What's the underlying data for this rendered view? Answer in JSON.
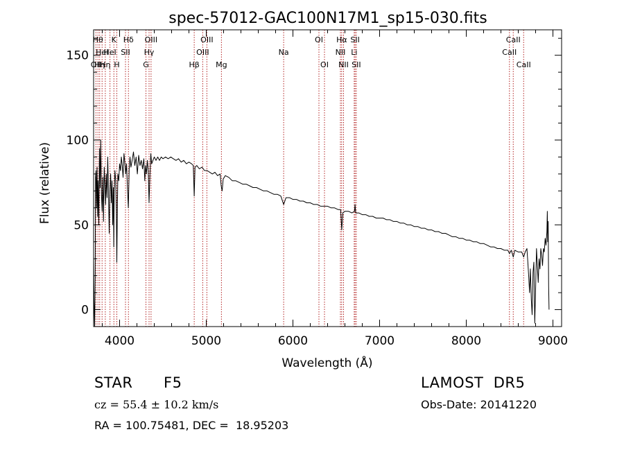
{
  "chart_data": {
    "type": "line",
    "title": "spec-57012-GAC100N17M1_sp15-030.fits",
    "xlabel": "Wavelength (Å)",
    "ylabel": "Flux (relative)",
    "xlim": [
      3700,
      9100
    ],
    "ylim": [
      -10,
      165
    ],
    "xticks": [
      4000,
      5000,
      6000,
      7000,
      8000,
      9000
    ],
    "yticks": [
      0,
      50,
      100,
      150
    ],
    "grid": false,
    "series": [
      {
        "color": "#000000",
        "points": [
          [
            3700,
            30
          ],
          [
            3705,
            5
          ],
          [
            3712,
            -10
          ],
          [
            3718,
            20
          ],
          [
            3722,
            78
          ],
          [
            3728,
            82
          ],
          [
            3734,
            60
          ],
          [
            3740,
            84
          ],
          [
            3746,
            55
          ],
          [
            3752,
            76
          ],
          [
            3760,
            50
          ],
          [
            3768,
            95
          ],
          [
            3775,
            72
          ],
          [
            3782,
            100
          ],
          [
            3790,
            68
          ],
          [
            3798,
            58
          ],
          [
            3806,
            78
          ],
          [
            3814,
            52
          ],
          [
            3822,
            84
          ],
          [
            3830,
            74
          ],
          [
            3838,
            62
          ],
          [
            3846,
            80
          ],
          [
            3855,
            66
          ],
          [
            3863,
            90
          ],
          [
            3871,
            71
          ],
          [
            3880,
            45
          ],
          [
            3888,
            70
          ],
          [
            3897,
            80
          ],
          [
            3905,
            63
          ],
          [
            3913,
            76
          ],
          [
            3920,
            50
          ],
          [
            3928,
            72
          ],
          [
            3933,
            37
          ],
          [
            3938,
            70
          ],
          [
            3946,
            82
          ],
          [
            3955,
            76
          ],
          [
            3962,
            58
          ],
          [
            3968,
            28
          ],
          [
            3974,
            60
          ],
          [
            3980,
            80
          ],
          [
            3990,
            76
          ],
          [
            4000,
            86
          ],
          [
            4010,
            82
          ],
          [
            4020,
            90
          ],
          [
            4030,
            85
          ],
          [
            4040,
            78
          ],
          [
            4050,
            92
          ],
          [
            4060,
            87
          ],
          [
            4070,
            80
          ],
          [
            4080,
            86
          ],
          [
            4090,
            72
          ],
          [
            4101,
            60
          ],
          [
            4110,
            83
          ],
          [
            4120,
            90
          ],
          [
            4130,
            84
          ],
          [
            4145,
            88
          ],
          [
            4160,
            93
          ],
          [
            4175,
            85
          ],
          [
            4190,
            90
          ],
          [
            4205,
            80
          ],
          [
            4220,
            91
          ],
          [
            4235,
            85
          ],
          [
            4250,
            88
          ],
          [
            4265,
            83
          ],
          [
            4280,
            89
          ],
          [
            4290,
            76
          ],
          [
            4300,
            85
          ],
          [
            4310,
            80
          ],
          [
            4320,
            88
          ],
          [
            4330,
            82
          ],
          [
            4340,
            63
          ],
          [
            4350,
            80
          ],
          [
            4360,
            92
          ],
          [
            4370,
            86
          ],
          [
            4385,
            88
          ],
          [
            4400,
            90
          ],
          [
            4420,
            88
          ],
          [
            4440,
            90
          ],
          [
            4460,
            88
          ],
          [
            4480,
            90
          ],
          [
            4500,
            89
          ],
          [
            4530,
            90
          ],
          [
            4560,
            89
          ],
          [
            4590,
            90
          ],
          [
            4620,
            89
          ],
          [
            4650,
            88
          ],
          [
            4680,
            89
          ],
          [
            4710,
            87
          ],
          [
            4740,
            88
          ],
          [
            4770,
            86
          ],
          [
            4800,
            87
          ],
          [
            4830,
            86
          ],
          [
            4850,
            85
          ],
          [
            4861,
            67
          ],
          [
            4870,
            84
          ],
          [
            4890,
            85
          ],
          [
            4920,
            83
          ],
          [
            4950,
            84
          ],
          [
            4980,
            82
          ],
          [
            5010,
            82
          ],
          [
            5040,
            81
          ],
          [
            5070,
            80
          ],
          [
            5100,
            81
          ],
          [
            5130,
            79
          ],
          [
            5160,
            80
          ],
          [
            5172,
            73
          ],
          [
            5183,
            70
          ],
          [
            5195,
            77
          ],
          [
            5220,
            79
          ],
          [
            5260,
            78
          ],
          [
            5300,
            76
          ],
          [
            5340,
            76
          ],
          [
            5380,
            75
          ],
          [
            5420,
            74
          ],
          [
            5460,
            74
          ],
          [
            5500,
            73
          ],
          [
            5540,
            72
          ],
          [
            5580,
            72
          ],
          [
            5620,
            71
          ],
          [
            5660,
            70
          ],
          [
            5700,
            70
          ],
          [
            5740,
            69
          ],
          [
            5780,
            68
          ],
          [
            5820,
            68
          ],
          [
            5860,
            67
          ],
          [
            5893,
            62
          ],
          [
            5920,
            66
          ],
          [
            5960,
            66
          ],
          [
            6000,
            65
          ],
          [
            6040,
            65
          ],
          [
            6080,
            64
          ],
          [
            6120,
            64
          ],
          [
            6160,
            63
          ],
          [
            6200,
            63
          ],
          [
            6240,
            62
          ],
          [
            6280,
            62
          ],
          [
            6320,
            61
          ],
          [
            6360,
            61
          ],
          [
            6400,
            61
          ],
          [
            6440,
            60
          ],
          [
            6480,
            60
          ],
          [
            6520,
            59
          ],
          [
            6550,
            59
          ],
          [
            6563,
            47
          ],
          [
            6575,
            57
          ],
          [
            6600,
            58
          ],
          [
            6640,
            58
          ],
          [
            6680,
            57
          ],
          [
            6710,
            58
          ],
          [
            6717,
            62
          ],
          [
            6724,
            57
          ],
          [
            6760,
            57
          ],
          [
            6800,
            56
          ],
          [
            6840,
            56
          ],
          [
            6880,
            55
          ],
          [
            6920,
            55
          ],
          [
            6960,
            54
          ],
          [
            7000,
            54
          ],
          [
            7040,
            54
          ],
          [
            7080,
            53
          ],
          [
            7120,
            53
          ],
          [
            7160,
            52
          ],
          [
            7200,
            52
          ],
          [
            7240,
            51
          ],
          [
            7280,
            51
          ],
          [
            7320,
            50
          ],
          [
            7360,
            50
          ],
          [
            7400,
            49
          ],
          [
            7440,
            49
          ],
          [
            7480,
            48
          ],
          [
            7520,
            48
          ],
          [
            7560,
            47
          ],
          [
            7600,
            47
          ],
          [
            7640,
            46
          ],
          [
            7680,
            46
          ],
          [
            7720,
            45
          ],
          [
            7760,
            45
          ],
          [
            7800,
            44
          ],
          [
            7840,
            43
          ],
          [
            7880,
            43
          ],
          [
            7920,
            42
          ],
          [
            7960,
            42
          ],
          [
            8000,
            41
          ],
          [
            8040,
            41
          ],
          [
            8080,
            40
          ],
          [
            8120,
            40
          ],
          [
            8160,
            39
          ],
          [
            8200,
            39
          ],
          [
            8240,
            38
          ],
          [
            8280,
            37
          ],
          [
            8320,
            37
          ],
          [
            8360,
            36
          ],
          [
            8400,
            36
          ],
          [
            8440,
            35
          ],
          [
            8480,
            35
          ],
          [
            8498,
            33
          ],
          [
            8520,
            35
          ],
          [
            8542,
            31
          ],
          [
            8560,
            35
          ],
          [
            8600,
            34
          ],
          [
            8640,
            34
          ],
          [
            8662,
            31
          ],
          [
            8680,
            34
          ],
          [
            8700,
            36
          ],
          [
            8710,
            28
          ],
          [
            8720,
            20
          ],
          [
            8730,
            10
          ],
          [
            8740,
            24
          ],
          [
            8750,
            6
          ],
          [
            8760,
            -3
          ],
          [
            8770,
            22
          ],
          [
            8780,
            28
          ],
          [
            8790,
            -8
          ],
          [
            8800,
            12
          ],
          [
            8810,
            36
          ],
          [
            8820,
            26
          ],
          [
            8830,
            16
          ],
          [
            8840,
            30
          ],
          [
            8850,
            24
          ],
          [
            8860,
            36
          ],
          [
            8870,
            32
          ],
          [
            8880,
            26
          ],
          [
            8890,
            36
          ],
          [
            8900,
            34
          ],
          [
            8910,
            42
          ],
          [
            8920,
            38
          ],
          [
            8930,
            46
          ],
          [
            8935,
            58
          ],
          [
            8940,
            40
          ],
          [
            8945,
            52
          ],
          [
            8950,
            14
          ],
          [
            8955,
            0
          ]
        ]
      }
    ],
    "lines": [
      {
        "x": 3727,
        "label": "OII",
        "row": 2
      },
      {
        "x": 3750,
        "label": "Hθ",
        "row": 0
      },
      {
        "x": 3770,
        "label": "Hη",
        "row": 2
      },
      {
        "x": 3798,
        "label": "HeI",
        "row": 1
      },
      {
        "x": 3835,
        "label": "Hη",
        "row": 2
      },
      {
        "x": 3889,
        "label": "HeI",
        "row": 1
      },
      {
        "x": 3934,
        "label": "K",
        "row": 0
      },
      {
        "x": 3968,
        "label": "H",
        "row": 2
      },
      {
        "x": 4068,
        "label": "SII",
        "row": 1
      },
      {
        "x": 4102,
        "label": "Hδ",
        "row": 0
      },
      {
        "x": 4304,
        "label": "G",
        "row": 2
      },
      {
        "x": 4340,
        "label": "Hγ",
        "row": 1
      },
      {
        "x": 4363,
        "label": "OIII",
        "row": 0
      },
      {
        "x": 4861,
        "label": "Hβ",
        "row": 2
      },
      {
        "x": 4959,
        "label": "OIII",
        "row": 1
      },
      {
        "x": 5007,
        "label": "OIII",
        "row": 0
      },
      {
        "x": 5175,
        "label": "Mg",
        "row": 2
      },
      {
        "x": 5893,
        "label": "Na",
        "row": 1
      },
      {
        "x": 6300,
        "label": "OI",
        "row": 0
      },
      {
        "x": 6364,
        "label": "OI",
        "row": 2
      },
      {
        "x": 6548,
        "label": "NII",
        "row": 1
      },
      {
        "x": 6563,
        "label": "Hα",
        "row": 0
      },
      {
        "x": 6584,
        "label": "NII",
        "row": 2
      },
      {
        "x": 6707,
        "label": "Li",
        "row": 1
      },
      {
        "x": 6717,
        "label": "SII",
        "row": 0
      },
      {
        "x": 6731,
        "label": "SII",
        "row": 2
      },
      {
        "x": 8498,
        "label": "CaII",
        "row": 1
      },
      {
        "x": 8542,
        "label": "CaII",
        "row": 0
      },
      {
        "x": 8662,
        "label": "CaII",
        "row": 2
      }
    ],
    "line_color": "#b22222"
  },
  "info": {
    "class_label": "STAR",
    "subclass": "F5",
    "survey": "LAMOST  DR5",
    "cz": "cz = 55.4 ± 10.2 km/s",
    "obs_date": "Obs-Date: 20141220",
    "coords": "RA = 100.75481, DEC =  18.95203"
  }
}
